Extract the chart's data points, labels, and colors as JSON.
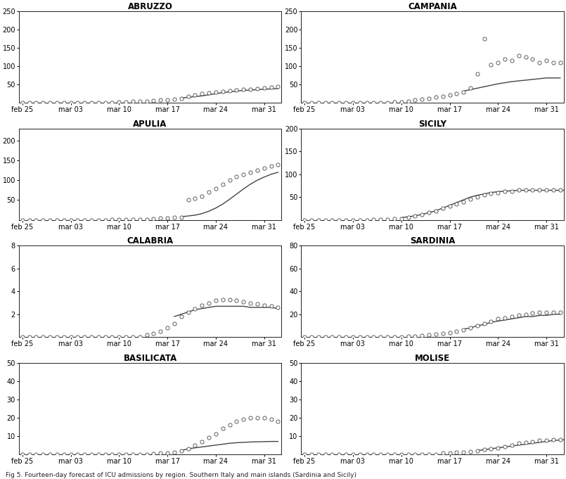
{
  "regions": [
    "ABRUZZO",
    "CAMPANIA",
    "APULIA",
    "SICILY",
    "CALABRIA",
    "SARDINIA",
    "BASILICATA",
    "MOLISE"
  ],
  "background_color": "#ffffff",
  "figure_caption": "Fig 5. Fourteen-day forecast of ICU admissions by region. Southern Italy and main islands (Sardinia and Sicily)",
  "n_days": 38,
  "x_ticks_labels": [
    "feb 25",
    "mar 03",
    "mar 10",
    "mar 17",
    "mar 24",
    "mar 31"
  ],
  "x_ticks_days": [
    0,
    7,
    14,
    21,
    28,
    35
  ],
  "scatter_color": "white",
  "scatter_edgecolor": "#444444",
  "line_color": "#444444",
  "abruzzo": {
    "ylim": [
      0,
      250
    ],
    "yticks": [
      50,
      100,
      150,
      200,
      250
    ],
    "obs": [
      0,
      0,
      0,
      0,
      0,
      0,
      0,
      0,
      0,
      0,
      0,
      1,
      0,
      1,
      2,
      2,
      4,
      5,
      5,
      6,
      7,
      8,
      10,
      12,
      18,
      22,
      26,
      28,
      30,
      32,
      33,
      35,
      36,
      37,
      39,
      41,
      43,
      45
    ],
    "fit_start": 23,
    "fit": [
      13,
      15,
      17,
      19,
      22,
      25,
      28,
      30,
      32,
      34,
      35,
      36,
      37,
      38,
      39
    ]
  },
  "campania": {
    "ylim": [
      0,
      250
    ],
    "yticks": [
      50,
      100,
      150,
      200,
      250
    ],
    "obs": [
      0,
      0,
      0,
      0,
      0,
      0,
      0,
      0,
      0,
      0,
      1,
      1,
      1,
      2,
      3,
      5,
      7,
      10,
      12,
      15,
      18,
      22,
      25,
      30,
      40,
      80,
      175,
      105,
      110,
      120,
      115,
      130,
      125,
      120,
      110,
      115,
      110,
      110
    ],
    "fit_start": 23,
    "fit": [
      32,
      36,
      40,
      44,
      48,
      52,
      55,
      58,
      60,
      62,
      64,
      66,
      68,
      68,
      68
    ]
  },
  "apulia": {
    "ylim": [
      0,
      230
    ],
    "yticks": [
      50,
      100,
      150,
      200
    ],
    "obs": [
      0,
      0,
      0,
      0,
      0,
      0,
      0,
      0,
      0,
      0,
      0,
      0,
      0,
      1,
      1,
      1,
      2,
      2,
      2,
      3,
      4,
      5,
      6,
      7,
      50,
      55,
      60,
      70,
      80,
      90,
      100,
      110,
      115,
      120,
      125,
      130,
      135,
      140
    ],
    "fit_start": 23,
    "fit": [
      8,
      10,
      12,
      16,
      22,
      30,
      40,
      52,
      65,
      78,
      90,
      100,
      108,
      115,
      120
    ]
  },
  "sicily": {
    "ylim": [
      0,
      200
    ],
    "yticks": [
      50,
      100,
      150,
      200
    ],
    "obs": [
      0,
      0,
      0,
      0,
      0,
      0,
      0,
      0,
      0,
      0,
      1,
      1,
      1,
      2,
      3,
      5,
      8,
      12,
      16,
      20,
      25,
      30,
      35,
      40,
      45,
      50,
      55,
      58,
      60,
      62,
      63,
      65,
      65,
      65,
      65,
      65,
      65,
      65
    ],
    "fit_start": 14,
    "fit": [
      5,
      7,
      9,
      12,
      16,
      20,
      26,
      32,
      38,
      44,
      50,
      54,
      57,
      60,
      62,
      63,
      64,
      65,
      65,
      65,
      65,
      65,
      65,
      65,
      65
    ]
  },
  "calabria": {
    "ylim": [
      0,
      8
    ],
    "yticks": [
      2,
      4,
      6,
      8
    ],
    "obs": [
      0,
      0,
      0,
      0,
      0,
      0,
      0,
      0,
      0,
      0,
      0,
      0,
      0,
      0,
      0,
      0,
      0,
      0,
      0.2,
      0.3,
      0.5,
      0.8,
      1.2,
      1.8,
      2.2,
      2.5,
      2.8,
      3.0,
      3.2,
      3.3,
      3.3,
      3.2,
      3.1,
      3.0,
      2.9,
      2.8,
      2.7,
      2.6
    ],
    "fit_start": 22,
    "fit": [
      1.8,
      2.0,
      2.2,
      2.4,
      2.5,
      2.6,
      2.7,
      2.7,
      2.7,
      2.7,
      2.7,
      2.6,
      2.6,
      2.6,
      2.6,
      2.5
    ]
  },
  "sardinia": {
    "ylim": [
      0,
      80
    ],
    "yticks": [
      20,
      40,
      60,
      80
    ],
    "obs": [
      0,
      0,
      0,
      0,
      0,
      0,
      0,
      0,
      0,
      0,
      0,
      0,
      0,
      0,
      0,
      0.5,
      0.8,
      1.2,
      1.8,
      2.5,
      3.2,
      4.0,
      5.0,
      6.5,
      8,
      10,
      12,
      14,
      16,
      17,
      18,
      19,
      20,
      21,
      22,
      22,
      22,
      22
    ],
    "fit_start": 23,
    "fit": [
      7,
      8,
      10,
      11,
      13,
      14,
      15,
      16,
      17,
      18,
      18,
      19,
      19,
      20,
      20
    ]
  },
  "basilicata": {
    "ylim": [
      0,
      50
    ],
    "yticks": [
      10,
      20,
      30,
      40,
      50
    ],
    "obs": [
      0,
      0,
      0,
      0,
      0,
      0,
      0,
      0,
      0,
      0,
      0,
      0,
      0,
      0,
      0,
      0,
      0,
      0,
      0,
      0.2,
      0.5,
      0.8,
      1.2,
      1.8,
      3,
      5,
      7,
      9,
      11,
      14,
      16,
      18,
      19,
      20,
      20,
      20,
      19,
      18
    ],
    "fit_start": 23,
    "fit": [
      2,
      3,
      3.5,
      4,
      4.5,
      5,
      5.5,
      6,
      6.3,
      6.5,
      6.7,
      6.8,
      6.9,
      7.0,
      7.0
    ]
  },
  "molise": {
    "ylim": [
      0,
      50
    ],
    "yticks": [
      10,
      20,
      30,
      40,
      50
    ],
    "obs": [
      0,
      0,
      0,
      0,
      0,
      0,
      0,
      0,
      0,
      0,
      0,
      0,
      0,
      0,
      0,
      0,
      0,
      0,
      0,
      0,
      0.5,
      0.8,
      1.0,
      1.2,
      1.5,
      2,
      2.5,
      3,
      3.5,
      4,
      5,
      6,
      6.5,
      7,
      7.5,
      7.8,
      8,
      8
    ],
    "fit_start": 25,
    "fit": [
      2,
      2.5,
      3,
      3.5,
      4,
      4.5,
      5,
      5.5,
      6,
      6.5,
      7,
      7.5,
      7.8,
      8,
      8
    ]
  }
}
